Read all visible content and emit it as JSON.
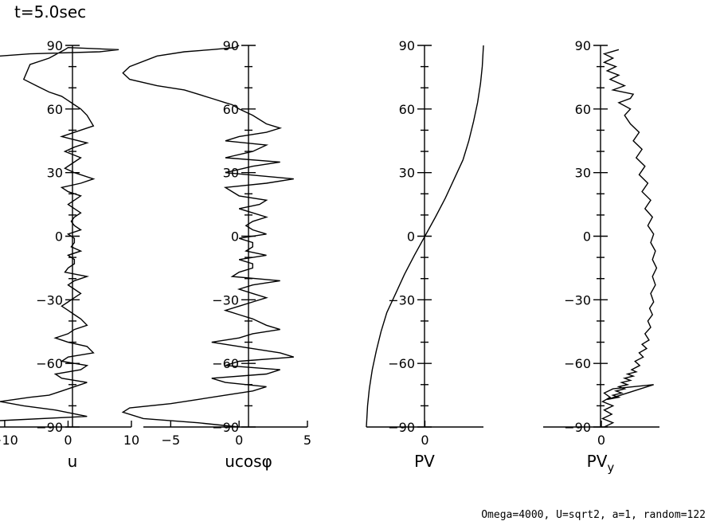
{
  "header": {
    "time_label": "t=5.0sec"
  },
  "footer": {
    "params": "Omega=4000, U=sqrt2, a=1, random=122"
  },
  "chart_data": [
    {
      "type": "line",
      "xlabel": "u",
      "ylim": [
        -90,
        90
      ],
      "xlim": [
        -12,
        10
      ],
      "yticks": [
        "90",
        "60",
        "30",
        "0",
        "−30",
        "−60",
        "−90"
      ],
      "xticks": [
        {
          "value": -10,
          "label": "−10"
        },
        {
          "value": 0,
          "label": "0"
        },
        {
          "value": 10,
          "label": "10"
        }
      ],
      "series": [
        {
          "x": [
            -13,
            -6,
            5,
            8,
            0,
            -0.5,
            -3,
            -6,
            -7,
            -5,
            -3,
            -1,
            0,
            1,
            2,
            3,
            4,
            1,
            -1,
            3,
            1,
            -0.5,
            2,
            0.5,
            -0.5,
            1,
            4,
            2,
            -1,
            0,
            2,
            1,
            0,
            1,
            2,
            1,
            0.5,
            1,
            2,
            0,
            1,
            1,
            0.5,
            2,
            0,
            1,
            1,
            0,
            -0.5,
            3,
            1,
            0,
            1,
            2,
            1,
            0,
            -1,
            0,
            1,
            2,
            3,
            1,
            0,
            -2,
            0,
            3,
            4,
            0,
            -1,
            3,
            2,
            -2,
            -1,
            3,
            1,
            -1,
            -3,
            -6,
            -13,
            -7,
            -2,
            3,
            -13
          ],
          "y": [
            85,
            86,
            87,
            88,
            89,
            88,
            84,
            81,
            74,
            71,
            68,
            66,
            64,
            62,
            60,
            57,
            52,
            49,
            47,
            44,
            42,
            40,
            37,
            34,
            32,
            30,
            27,
            25,
            23,
            21,
            19,
            17,
            15,
            13,
            11,
            9,
            7,
            5,
            3,
            1,
            -1,
            -3,
            -5,
            -7,
            -9,
            -11,
            -13,
            -15,
            -17,
            -19,
            -21,
            -23,
            -25,
            -27,
            -29,
            -31,
            -33,
            -35,
            -37,
            -39,
            -42,
            -44,
            -46,
            -48,
            -50,
            -52,
            -55,
            -57,
            -59,
            -61,
            -63,
            -65,
            -67,
            -69,
            -71,
            -73,
            -75,
            -76,
            -78,
            -80,
            -82,
            -85,
            -87
          ]
        }
      ]
    },
    {
      "type": "line",
      "xlabel": "ucosφ",
      "ylim": [
        -90,
        90
      ],
      "xlim": [
        -7,
        5
      ],
      "yticks": [
        "90",
        "60",
        "30",
        "0",
        "−30",
        "−60",
        "−90"
      ],
      "xticks": [
        {
          "value": -5,
          "label": "−5"
        },
        {
          "value": 0,
          "label": "0"
        },
        {
          "value": 5,
          "label": "5"
        }
      ],
      "series": [
        {
          "x": [
            0,
            -0.3,
            -2,
            -4,
            -6,
            -8,
            -8.5,
            -8,
            -6,
            -4,
            -3,
            -2,
            -1,
            -0.5,
            0,
            1,
            2,
            3,
            2,
            0,
            -1,
            2,
            1,
            -1,
            3,
            1,
            -1,
            4,
            2,
            -1,
            -0.5,
            0,
            2,
            1.5,
            0,
            1,
            2,
            1,
            0.5,
            1,
            2,
            0,
            1,
            1,
            0.5,
            2,
            0,
            1,
            1,
            0,
            -0.5,
            3,
            1,
            0,
            1,
            2,
            1,
            0,
            -1,
            0,
            1,
            2,
            3,
            1,
            0,
            -2,
            0,
            3,
            4,
            0,
            -1,
            3,
            2,
            -2,
            -1,
            2,
            1,
            -1,
            -3,
            -5,
            -8,
            -8.5,
            -7,
            -3,
            0
          ],
          "y": [
            90,
            89,
            88,
            87,
            85,
            80,
            77,
            74,
            71,
            69,
            67,
            65,
            63,
            62,
            60,
            57,
            53,
            51,
            49,
            47,
            45,
            43,
            40,
            37,
            35,
            33,
            30,
            27,
            25,
            23,
            21,
            19,
            17,
            15,
            13,
            11,
            9,
            7,
            5,
            3,
            1,
            -1,
            -3,
            -5,
            -7,
            -9,
            -11,
            -13,
            -15,
            -17,
            -19,
            -21,
            -23,
            -25,
            -27,
            -29,
            -31,
            -33,
            -35,
            -37,
            -39,
            -42,
            -44,
            -46,
            -48,
            -50,
            -52,
            -55,
            -57,
            -59,
            -61,
            -63,
            -65,
            -67,
            -69,
            -71,
            -73,
            -75,
            -77,
            -79,
            -81,
            -83,
            -86,
            -88,
            -90
          ]
        }
      ]
    },
    {
      "type": "line",
      "xlabel": "PV",
      "ylim": [
        -90,
        90
      ],
      "xlim": [
        -1,
        1
      ],
      "yticks": [
        "90",
        "60",
        "30",
        "0",
        "−30",
        "−60",
        "−90"
      ],
      "xticks": [
        {
          "value": 0,
          "label": "0"
        }
      ],
      "series": [
        {
          "x": [
            -1,
            -0.98,
            -0.95,
            -0.9,
            -0.83,
            -0.75,
            -0.65,
            -0.5,
            -0.35,
            -0.18,
            0,
            0.18,
            0.35,
            0.5,
            0.65,
            0.75,
            0.83,
            0.9,
            0.95,
            0.98,
            1
          ],
          "y": [
            -90,
            -80,
            -72,
            -63,
            -54,
            -45,
            -36,
            -27,
            -18,
            -9,
            0,
            9,
            18,
            27,
            36,
            45,
            54,
            63,
            72,
            80,
            90
          ]
        }
      ]
    },
    {
      "type": "line",
      "xlabel": "PV",
      "xlabel_subscript": "y",
      "ylim": [
        -90,
        90
      ],
      "xlim": [
        -1,
        1
      ],
      "yticks": [
        "90",
        "60",
        "30",
        "0",
        "−30",
        "−60",
        "−90"
      ],
      "xticks": [
        {
          "value": 0,
          "label": "0"
        }
      ],
      "series": [
        {
          "x": [
            0.3,
            0.05,
            0.2,
            0.05,
            0.25,
            0.1,
            0.3,
            0.15,
            0.4,
            0.2,
            0.55,
            0.5,
            0.3,
            0.5,
            0.4,
            0.5,
            0.65,
            0.55,
            0.7,
            0.6,
            0.75,
            0.65,
            0.8,
            0.7,
            0.85,
            0.75,
            0.88,
            0.8,
            0.9,
            0.85,
            0.93,
            0.88,
            0.95,
            0.88,
            0.93,
            0.85,
            0.9,
            0.83,
            0.88,
            0.8,
            0.85,
            0.75,
            0.82,
            0.7,
            0.78,
            0.65,
            0.72,
            0.58,
            0.66,
            0.52,
            0.6,
            0.45,
            0.55,
            0.4,
            0.5,
            0.35,
            0.45,
            0.3,
            0.4,
            0.25,
            0.35,
            0.2,
            0.3,
            0.1,
            0.9,
            0.2,
            0.05,
            0.15,
            0.02,
            0.2,
            0.05,
            0.18,
            0.02,
            0.2,
            0.05
          ],
          "y": [
            88,
            86,
            84,
            82,
            80,
            78,
            76,
            74,
            71,
            69,
            67,
            65,
            63,
            60,
            57,
            53,
            49,
            45,
            41,
            37,
            33,
            29,
            25,
            21,
            17,
            13,
            9,
            5,
            1,
            -3,
            -7,
            -11,
            -15,
            -19,
            -23,
            -27,
            -31,
            -34,
            -37,
            -40,
            -43,
            -46,
            -49,
            -51,
            -53,
            -55,
            -57,
            -59,
            -61,
            -63,
            -64,
            -65,
            -66,
            -67,
            -68,
            -69,
            -70,
            -71,
            -72,
            -73,
            -74,
            -75,
            -76,
            -77,
            -70,
            -72,
            -74,
            -76,
            -78,
            -80,
            -82,
            -84,
            -86,
            -88,
            -90
          ]
        }
      ]
    }
  ]
}
